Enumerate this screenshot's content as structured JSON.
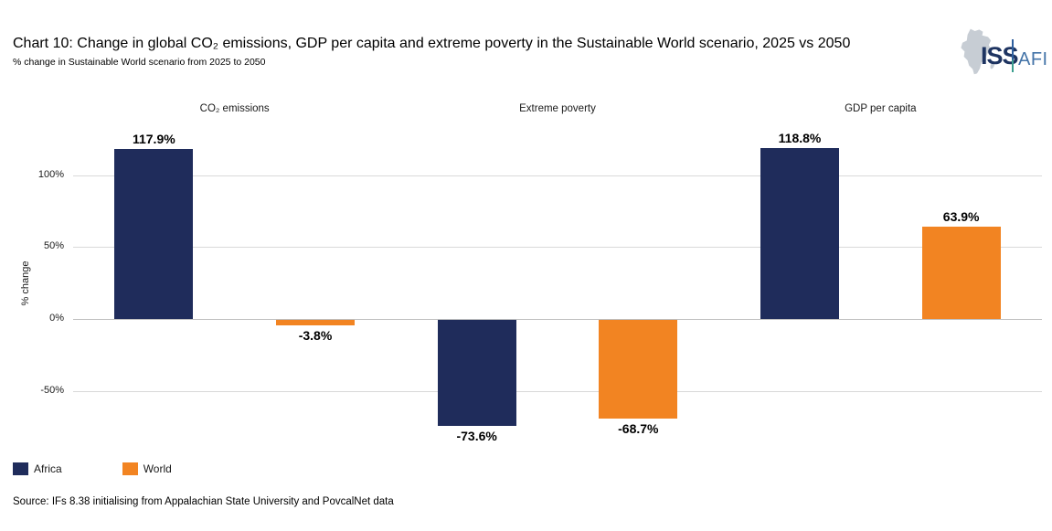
{
  "title": "Chart 10: Change in global CO₂ emissions, GDP per capita and extreme poverty in the Sustainable World scenario, 2025 vs 2050",
  "subtitle": "% change in Sustainable World scenario from 2025 to 2050",
  "source": "Source: IFs 8.38 initialising from Appalachian State University and PovcalNet data",
  "logo": {
    "iss": "ISS",
    "afi": "AFI"
  },
  "colors": {
    "africa": "#1f2c5b",
    "world": "#f28422",
    "grid": "#d9d9d9",
    "zero_line": "#bfbfbf",
    "logo_navy": "#1e3461",
    "logo_blue": "#4474a8",
    "logo_teal": "#3a9e8e",
    "logo_gray": "#c7cdd4"
  },
  "chart_data": {
    "type": "bar",
    "title": "Chart 10: Change in global CO₂ emissions, GDP per capita and extreme poverty in the Sustainable World scenario, 2025 vs 2050",
    "subtitle": "% change in Sustainable World scenario from 2025 to 2050",
    "xlabel": "",
    "ylabel": "% change",
    "categories": [
      "CO₂ emissions",
      "Extreme poverty",
      "GDP per capita"
    ],
    "series": [
      {
        "name": "Africa",
        "color": "#1f2c5b",
        "values": [
          117.9,
          -73.6,
          118.8
        ],
        "labels": [
          "117.9%",
          "-73.6%",
          "118.8%"
        ]
      },
      {
        "name": "World",
        "color": "#f28422",
        "values": [
          -3.8,
          -68.7,
          63.9
        ],
        "labels": [
          "-3.8%",
          "-68.7%",
          "63.9%"
        ]
      }
    ],
    "yticks": [
      {
        "value": 100,
        "label": "100%"
      },
      {
        "value": 50,
        "label": "50%"
      },
      {
        "value": 0,
        "label": "0%"
      },
      {
        "value": -50,
        "label": "-50%"
      }
    ],
    "ylim": [
      -90,
      133
    ],
    "grid": true,
    "legend": [
      "Africa",
      "World"
    ],
    "legend_position": "bottom-left"
  }
}
